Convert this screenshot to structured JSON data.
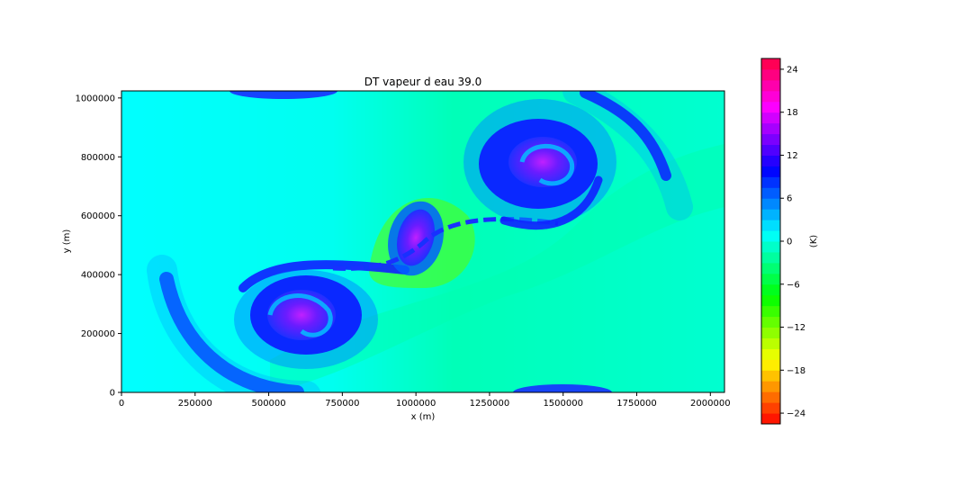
{
  "chart_data": {
    "type": "heatmap",
    "title": "DT vapeur d eau 39.0",
    "xlabel": "x (m)",
    "ylabel": "y (m)",
    "xlim": [
      0,
      2048000
    ],
    "ylim": [
      0,
      1024000
    ],
    "xticks": [
      0,
      250000,
      500000,
      750000,
      1000000,
      1250000,
      1500000,
      1750000,
      2000000
    ],
    "xtick_labels": [
      "0",
      "250000",
      "500000",
      "750000",
      "1000000",
      "1250000",
      "1500000",
      "1750000",
      "2000000"
    ],
    "yticks": [
      0,
      200000,
      400000,
      600000,
      800000,
      1000000
    ],
    "ytick_labels": [
      "0",
      "200000",
      "400000",
      "600000",
      "800000",
      "1000000"
    ],
    "colorbar": {
      "label": "(K)",
      "range": [
        -25.5,
        25.5
      ],
      "ticks": [
        24,
        18,
        12,
        6,
        0,
        -6,
        -12,
        -18,
        -24
      ],
      "tick_labels": [
        "24",
        "18",
        "12",
        "6",
        "0",
        "−6",
        "−12",
        "−18",
        "−24"
      ],
      "colormap": "hsv"
    },
    "background_value": 0.5,
    "features": [
      {
        "name": "lower-left vortex core",
        "x": 640000,
        "y": 270000,
        "value": 13
      },
      {
        "name": "upper-right vortex core",
        "x": 1420000,
        "y": 780000,
        "value": 13
      },
      {
        "name": "central vortex",
        "x": 1000000,
        "y": 520000,
        "value": 12
      },
      {
        "name": "lower-left vortex outer ring",
        "x": 560000,
        "y": 280000,
        "value": 8
      },
      {
        "name": "upper-right vortex outer ring",
        "x": 1460000,
        "y": 790000,
        "value": 8
      },
      {
        "name": "green band near center",
        "x": 1050000,
        "y": 500000,
        "value": -5
      },
      {
        "name": "top edge blue patch",
        "x": 560000,
        "y": 1010000,
        "value": 9
      },
      {
        "name": "bottom edge blue patch",
        "x": 1500000,
        "y": 10000,
        "value": 9
      }
    ]
  }
}
